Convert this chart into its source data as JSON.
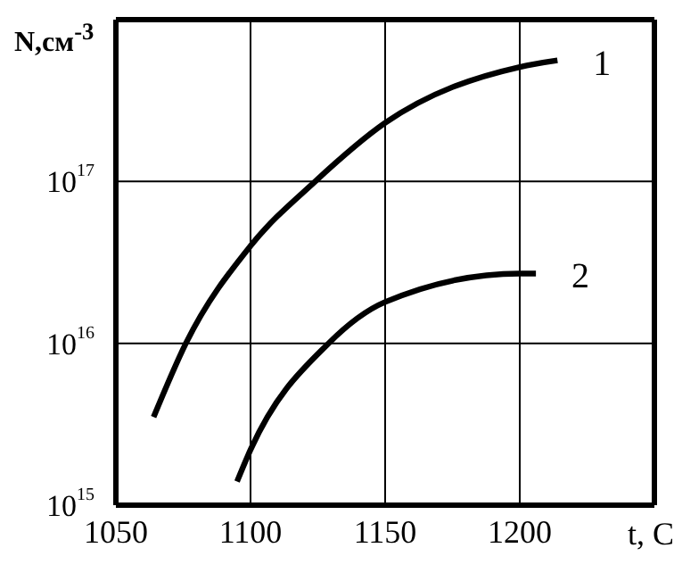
{
  "chart_data": {
    "type": "line",
    "xlabel": "t, C",
    "ylabel": "N,см$^{-3}$",
    "log": "y",
    "grid": true,
    "marker": "none",
    "line_style": "solid",
    "xlim": [
      1050,
      1250
    ],
    "xticks": [
      1050,
      1100,
      1150,
      1200
    ],
    "ylim": [
      1000000000000000.0,
      1e+18
    ],
    "yticks": [
      {
        "value": 1000000000000000.0,
        "label": "10$^{15}$"
      },
      {
        "value": 1e+16,
        "label": "10$^{16}$"
      },
      {
        "value": 1e+17,
        "label": "10$^{17}$"
      }
    ],
    "series": [
      {
        "name": "1",
        "color": "#000000",
        "x": [
          1064,
          1076,
          1100,
          1124,
          1150,
          1200,
          1214
        ],
        "values": [
          3500000000000000.0,
          1e+16,
          4e+16,
          1e+17,
          2.3e+17,
          5.1e+17,
          5.6e+17
        ]
      },
      {
        "name": "2",
        "color": "#000000",
        "x": [
          1095,
          1100,
          1129,
          1150,
          1200,
          1206
        ],
        "values": [
          1400000000000000.0,
          2200000000000000.0,
          1e+16,
          1.8e+16,
          2.7e+16,
          2.7e+16
        ]
      }
    ]
  }
}
